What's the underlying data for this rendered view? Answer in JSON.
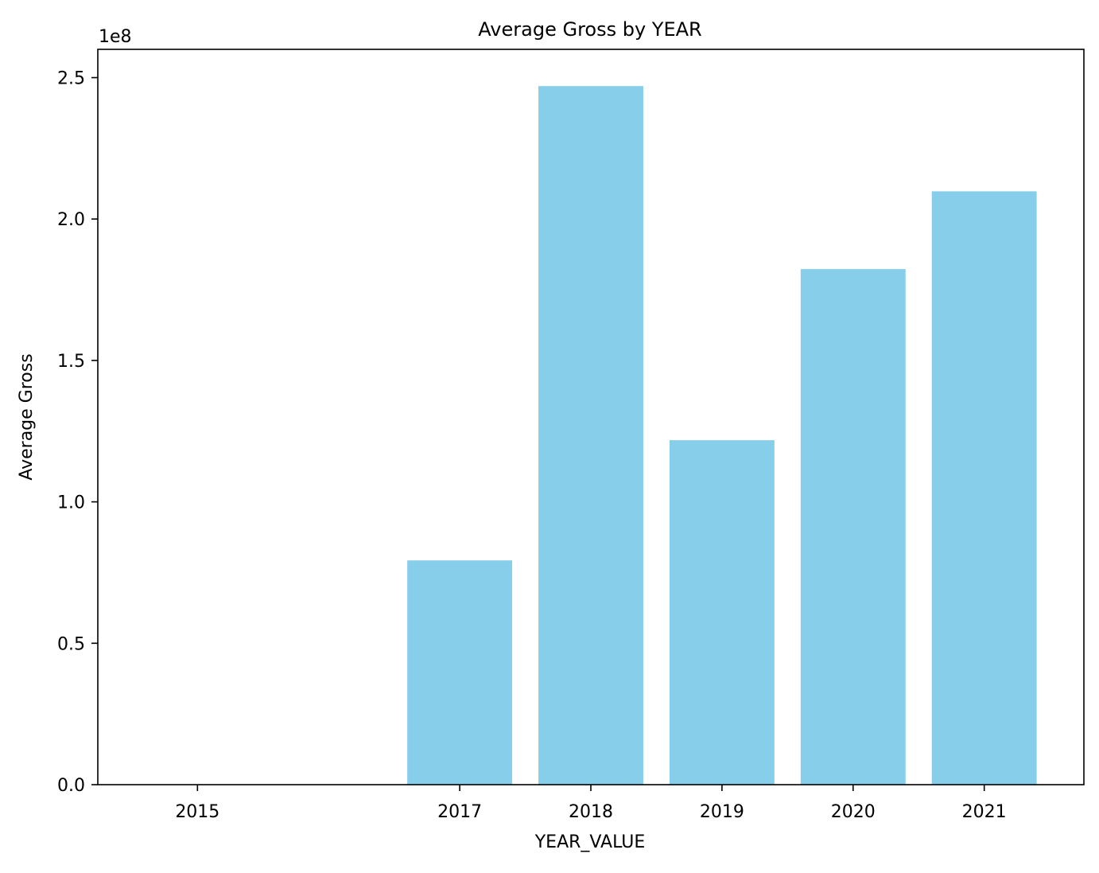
{
  "chart_data": {
    "type": "bar",
    "title": "Average Gross by YEAR",
    "xlabel": "YEAR_VALUE",
    "ylabel": "Average Gross",
    "y_scale_label": "1e8",
    "y_scale_factor": 100000000,
    "x_tick_labels": [
      "2015",
      "2017",
      "2018",
      "2019",
      "2020",
      "2021"
    ],
    "x_tick_values": [
      2015,
      2017,
      2018,
      2019,
      2020,
      2021
    ],
    "bars": [
      {
        "year": 2015,
        "label": "2015",
        "value": 0
      },
      {
        "year": 2017,
        "label": "2017",
        "value": 79300000
      },
      {
        "year": 2018,
        "label": "2018",
        "value": 247000000
      },
      {
        "year": 2019,
        "label": "2019",
        "value": 121800000
      },
      {
        "year": 2020,
        "label": "2020",
        "value": 182300000
      },
      {
        "year": 2021,
        "label": "2021",
        "value": 209800000
      }
    ],
    "bar_width_years": 0.8,
    "xlim": [
      2014.24,
      2021.76
    ],
    "ylim": [
      0,
      260000000
    ],
    "y_ticks": [
      0,
      50000000,
      100000000,
      150000000,
      200000000,
      250000000
    ],
    "y_tick_labels": [
      "0.0",
      "0.5",
      "1.0",
      "1.5",
      "2.0",
      "2.5"
    ],
    "bar_color": "#87ceeb",
    "grid": false,
    "legend": "none"
  }
}
